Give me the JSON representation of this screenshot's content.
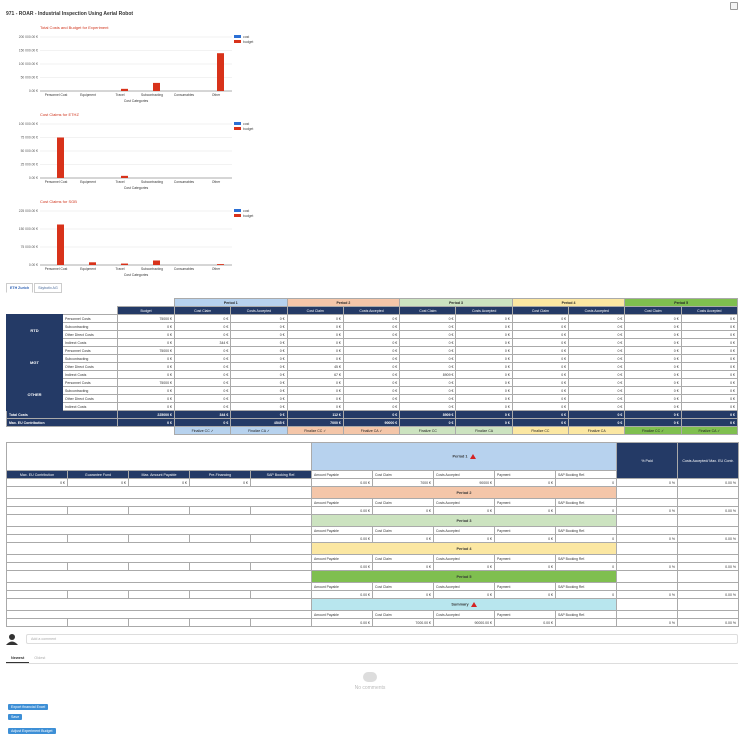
{
  "title": "971 - ROAR - Industrial Inspection Using Aerial Robot",
  "colors": {
    "cost": "#2b6fd4",
    "budget": "#d8321a",
    "navy": "#243a66"
  },
  "chart_data": [
    {
      "type": "bar",
      "title": "Total Costs and Budget for Experiment",
      "xlabel": "Cost Categories",
      "categories": [
        "Personnel Cost",
        "Equipment",
        "Travel",
        "Subcontracting",
        "Consumables",
        "Other"
      ],
      "yticks": [
        "0.00 €",
        "50 000.00 €",
        "100 000.00 €",
        "150 000.00 €",
        "200 000.00 €"
      ],
      "ylim": [
        0,
        200000
      ],
      "series": [
        {
          "name": "cost",
          "values": [
            0,
            0,
            0,
            0,
            0,
            0
          ]
        },
        {
          "name": "budget",
          "values": [
            0,
            0,
            8000,
            30000,
            0,
            140000
          ]
        }
      ]
    },
    {
      "type": "bar",
      "title": "Cost Claims for ETHZ",
      "xlabel": "Cost Categories",
      "categories": [
        "Personnel Cost",
        "Equipment",
        "Travel",
        "Subcontracting",
        "Consumables",
        "Other"
      ],
      "yticks": [
        "0.00 €",
        "25 000.00 €",
        "50 000.00 €",
        "75 000.00 €",
        "100 000.00 €"
      ],
      "ylim": [
        0,
        100000
      ],
      "series": [
        {
          "name": "cost",
          "values": [
            0,
            0,
            0,
            0,
            0,
            0
          ]
        },
        {
          "name": "budget",
          "values": [
            75000,
            0,
            4000,
            0,
            0,
            0
          ]
        }
      ]
    },
    {
      "type": "bar",
      "title": "Cost Claims for SGB",
      "xlabel": "Cost Categories",
      "categories": [
        "Personnel Cost",
        "Equipment",
        "Travel",
        "Subcontracting",
        "Consumables",
        "Other"
      ],
      "yticks": [
        "0.00 €",
        "75 000.00 €",
        "150 000.00 €",
        "225 000.00 €"
      ],
      "ylim": [
        0,
        300000
      ],
      "series": [
        {
          "name": "cost",
          "values": [
            0,
            0,
            0,
            0,
            0,
            0
          ]
        },
        {
          "name": "budget",
          "values": [
            225000,
            15000,
            8000,
            25000,
            0,
            5000
          ]
        }
      ]
    }
  ],
  "tabs": [
    "ETH Zurich",
    "Skybotix AG"
  ],
  "budget_table": {
    "periods": [
      "Period 1",
      "Period 2",
      "Period 3",
      "Period 4",
      "Period 5"
    ],
    "budget_label": "Budget",
    "sub": [
      "Cost Claim",
      "Costs Accepted"
    ],
    "groups": [
      {
        "name": "RTD",
        "rows": [
          {
            "label": "Personnel Costs",
            "budget": "75000 €",
            "vals": [
              "0 €",
              "0 €",
              "0 €",
              "0 €",
              "0 €",
              "0 €",
              "0 €",
              "0 €",
              "0 €",
              "0 €"
            ]
          },
          {
            "label": "Subcontracting",
            "budget": "0 €",
            "vals": [
              "0 €",
              "0 €",
              "0 €",
              "0 €",
              "0 €",
              "0 €",
              "0 €",
              "0 €",
              "0 €",
              "0 €"
            ]
          },
          {
            "label": "Other Direct Costs",
            "budget": "0 €",
            "vals": [
              "0 €",
              "0 €",
              "0 €",
              "0 €",
              "0 €",
              "0 €",
              "0 €",
              "0 €",
              "0 €",
              "0 €"
            ]
          },
          {
            "label": "Indirect Costs",
            "budget": "0 €",
            "vals": [
              "344 €",
              "0 €",
              "0 €",
              "0 €",
              "0 €",
              "0 €",
              "0 €",
              "0 €",
              "0 €",
              "0 €"
            ]
          }
        ]
      },
      {
        "name": "MGT",
        "rows": [
          {
            "label": "Personnel Costs",
            "budget": "75000 €",
            "vals": [
              "0 €",
              "0 €",
              "0 €",
              "0 €",
              "0 €",
              "0 €",
              "0 €",
              "0 €",
              "0 €",
              "0 €"
            ]
          },
          {
            "label": "Subcontracting",
            "budget": "0 €",
            "vals": [
              "0 €",
              "0 €",
              "0 €",
              "0 €",
              "0 €",
              "0 €",
              "0 €",
              "0 €",
              "0 €",
              "0 €"
            ]
          },
          {
            "label": "Other Direct Costs",
            "budget": "0 €",
            "vals": [
              "0 €",
              "0 €",
              "45 €",
              "0 €",
              "0 €",
              "0 €",
              "0 €",
              "0 €",
              "0 €",
              "0 €"
            ]
          },
          {
            "label": "Indirect Costs",
            "budget": "0 €",
            "vals": [
              "0 €",
              "0 €",
              "67 €",
              "0 €",
              "8909 €",
              "0 €",
              "0 €",
              "0 €",
              "0 €",
              "0 €"
            ]
          }
        ]
      },
      {
        "name": "OTHER",
        "rows": [
          {
            "label": "Personnel Costs",
            "budget": "75000 €",
            "vals": [
              "0 €",
              "0 €",
              "0 €",
              "0 €",
              "0 €",
              "0 €",
              "0 €",
              "0 €",
              "0 €",
              "0 €"
            ]
          },
          {
            "label": "Subcontracting",
            "budget": "0 €",
            "vals": [
              "0 €",
              "0 €",
              "0 €",
              "0 €",
              "0 €",
              "0 €",
              "0 €",
              "0 €",
              "0 €",
              "0 €"
            ]
          },
          {
            "label": "Other Direct Costs",
            "budget": "0 €",
            "vals": [
              "0 €",
              "0 €",
              "0 €",
              "0 €",
              "0 €",
              "0 €",
              "0 €",
              "0 €",
              "0 €",
              "0 €"
            ]
          },
          {
            "label": "Indirect Costs",
            "budget": "0 €",
            "vals": [
              "0 €",
              "0 €",
              "0 €",
              "0 €",
              "0 €",
              "0 €",
              "0 €",
              "0 €",
              "0 €",
              "0 €"
            ]
          }
        ]
      }
    ],
    "total": {
      "label": "Total Costs",
      "budget": "225000 €",
      "vals": [
        "344 €",
        "0 €",
        "112 €",
        "0 €",
        "8909 €",
        "0 €",
        "0 €",
        "0 €",
        "0 €",
        "0 €"
      ]
    },
    "maxeu": {
      "label": "Max. EU Contribution",
      "budget": "0 €",
      "vals": [
        "0 €",
        "4545 €",
        "7000 €",
        "90000 €",
        "0 €",
        "0 €",
        "0 €",
        "0 €",
        "0 €",
        "0 €"
      ]
    },
    "finalize": [
      "Finalize CC ✓",
      "Finalize CA ✓",
      "Finalize CC ✓",
      "Finalize CA ✓",
      "Finalize CC",
      "Finalize CA",
      "Finalize CC",
      "Finalize CA",
      "Finalize CC ✓",
      "Finalize CA ✓"
    ]
  },
  "payment_table": {
    "left_headers": [
      "Max. EU Contribution",
      "Guarantee Fund",
      "Max. Amount Payable",
      "Pre-Financing",
      "SAP Booking Ref."
    ],
    "left_values": [
      "0 €",
      "0 €",
      "0 €",
      "0 €",
      ""
    ],
    "right_headers": [
      "% Paid",
      "Costs Accepted/ Max. EU Contr."
    ],
    "mid_headers": [
      "Amount Payable",
      "Cost Claim",
      "Costs Accepted",
      "Payment",
      "SAP Booking Ref."
    ],
    "sections": [
      {
        "name": "Period 1",
        "warn": true,
        "vals": [
          "0.00 €",
          "7000 €",
          "90000 €",
          "0 €",
          "0"
        ],
        "pct": [
          "0 %",
          "0.00 %"
        ]
      },
      {
        "name": "Period 2",
        "warn": false,
        "vals": [
          "0.00 €",
          "0 €",
          "0 €",
          "0 €",
          "0"
        ],
        "pct": [
          "0 %",
          "0.00 %"
        ]
      },
      {
        "name": "Period 3",
        "warn": false,
        "vals": [
          "0.00 €",
          "0 €",
          "0 €",
          "0 €",
          "0"
        ],
        "pct": [
          "0 %",
          "0.00 %"
        ]
      },
      {
        "name": "Period 4",
        "warn": false,
        "vals": [
          "0.00 €",
          "0 €",
          "0 €",
          "0 €",
          "0"
        ],
        "pct": [
          "0 %",
          "0.00 %"
        ]
      },
      {
        "name": "Period 5",
        "warn": false,
        "vals": [
          "0.00 €",
          "0 €",
          "0 €",
          "0 €",
          "0"
        ],
        "pct": [
          "0 %",
          "0.00 %"
        ]
      },
      {
        "name": "Summary",
        "warn": true,
        "vals": [
          "0.00 €",
          "7000.00 €",
          "90000.00 €",
          "0.00 €",
          ""
        ],
        "pct": [
          "0 %",
          "0.00 %"
        ]
      }
    ]
  },
  "comments": {
    "placeholder": "Add a comment",
    "tabs": [
      "Newest",
      "Oldest"
    ],
    "empty": "No comments"
  },
  "buttons": {
    "export": "Export financial Excel",
    "save": "Save",
    "adjust": "Adjust Experiment Budget"
  }
}
